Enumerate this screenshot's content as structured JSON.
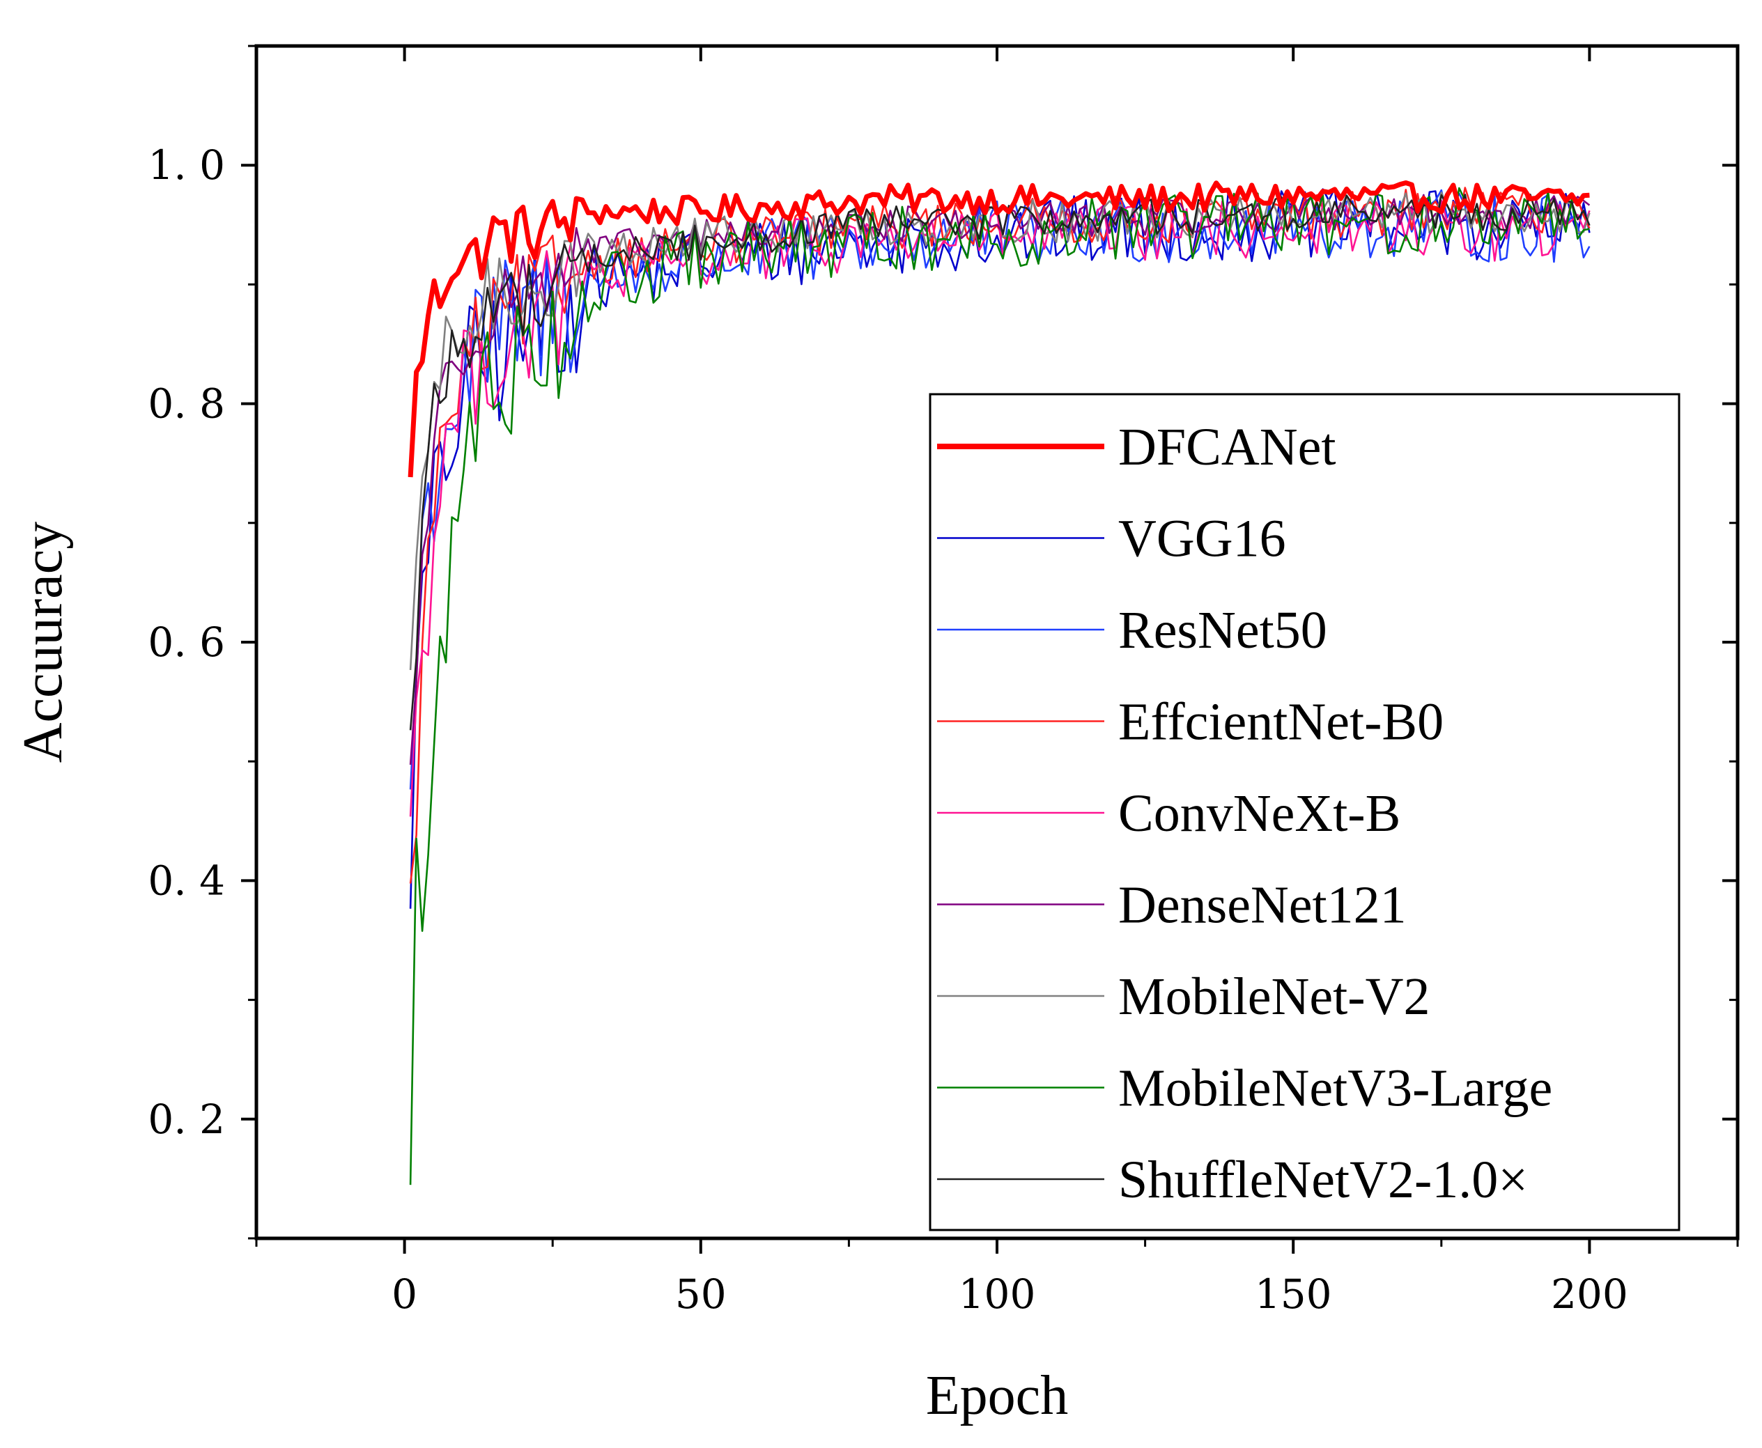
{
  "chart_data": {
    "type": "line",
    "title": "",
    "xlabel": "Epoch",
    "ylabel": "Accuuracy",
    "xlim": [
      -25,
      225
    ],
    "ylim": [
      0.1,
      1.1
    ],
    "xticks": [
      0,
      50,
      100,
      150,
      200
    ],
    "xtick_labels": [
      "0",
      "50",
      "100",
      "150",
      "200"
    ],
    "yticks": [
      0.2,
      0.4,
      0.6,
      0.8,
      1.0
    ],
    "ytick_labels": [
      "0. 2",
      "0. 4",
      "0. 6",
      "0. 8",
      "1. 0"
    ],
    "grid": false,
    "legend_position": "bottom-right",
    "series": [
      {
        "name": "DFCANet",
        "color": "#ff0000",
        "bold": true,
        "anchors": [
          [
            1,
            0.735
          ],
          [
            2,
            0.85
          ],
          [
            3,
            0.83
          ],
          [
            4,
            0.89
          ],
          [
            6,
            0.9
          ],
          [
            8,
            0.93
          ],
          [
            12,
            0.93
          ],
          [
            15,
            0.95
          ],
          [
            20,
            0.95
          ],
          [
            30,
            0.965
          ],
          [
            50,
            0.965
          ],
          [
            80,
            0.975
          ],
          [
            120,
            0.975
          ],
          [
            150,
            0.978
          ],
          [
            200,
            0.975
          ]
        ],
        "noise": 0.012
      },
      {
        "name": "VGG16",
        "color": "#0000cc",
        "anchors": [
          [
            1,
            0.45
          ],
          [
            3,
            0.65
          ],
          [
            5,
            0.72
          ],
          [
            8,
            0.8
          ],
          [
            12,
            0.85
          ],
          [
            20,
            0.88
          ],
          [
            30,
            0.91
          ],
          [
            50,
            0.93
          ],
          [
            80,
            0.945
          ],
          [
            120,
            0.955
          ],
          [
            160,
            0.96
          ],
          [
            200,
            0.955
          ]
        ],
        "noise": 0.03
      },
      {
        "name": "ResNet50",
        "color": "#1f3fff",
        "anchors": [
          [
            1,
            0.5
          ],
          [
            3,
            0.7
          ],
          [
            5,
            0.76
          ],
          [
            8,
            0.82
          ],
          [
            12,
            0.86
          ],
          [
            20,
            0.89
          ],
          [
            30,
            0.91
          ],
          [
            50,
            0.93
          ],
          [
            80,
            0.945
          ],
          [
            120,
            0.955
          ],
          [
            160,
            0.96
          ],
          [
            200,
            0.955
          ]
        ],
        "noise": 0.03
      },
      {
        "name": "EffcientNet-B0",
        "color": "#ff2020",
        "anchors": [
          [
            1,
            0.38
          ],
          [
            3,
            0.6
          ],
          [
            5,
            0.74
          ],
          [
            8,
            0.81
          ],
          [
            12,
            0.86
          ],
          [
            20,
            0.9
          ],
          [
            30,
            0.925
          ],
          [
            50,
            0.94
          ],
          [
            80,
            0.955
          ],
          [
            120,
            0.96
          ],
          [
            160,
            0.965
          ],
          [
            200,
            0.97
          ]
        ],
        "noise": 0.02
      },
      {
        "name": "ConvNeXt-B",
        "color": "#ff1493",
        "anchors": [
          [
            1,
            0.5
          ],
          [
            3,
            0.6
          ],
          [
            5,
            0.72
          ],
          [
            8,
            0.8
          ],
          [
            12,
            0.85
          ],
          [
            20,
            0.88
          ],
          [
            30,
            0.91
          ],
          [
            50,
            0.93
          ],
          [
            80,
            0.945
          ],
          [
            120,
            0.95
          ],
          [
            160,
            0.955
          ],
          [
            200,
            0.95
          ]
        ],
        "noise": 0.025
      },
      {
        "name": "DenseNet121",
        "color": "#800080",
        "anchors": [
          [
            1,
            0.5
          ],
          [
            3,
            0.68
          ],
          [
            5,
            0.78
          ],
          [
            8,
            0.84
          ],
          [
            12,
            0.88
          ],
          [
            20,
            0.91
          ],
          [
            30,
            0.93
          ],
          [
            50,
            0.945
          ],
          [
            80,
            0.955
          ],
          [
            120,
            0.96
          ],
          [
            160,
            0.965
          ],
          [
            200,
            0.965
          ]
        ],
        "noise": 0.015
      },
      {
        "name": "MobileNet-V2",
        "color": "#808080",
        "anchors": [
          [
            1,
            0.55
          ],
          [
            3,
            0.75
          ],
          [
            5,
            0.82
          ],
          [
            8,
            0.86
          ],
          [
            12,
            0.89
          ],
          [
            20,
            0.91
          ],
          [
            30,
            0.93
          ],
          [
            50,
            0.945
          ],
          [
            80,
            0.955
          ],
          [
            120,
            0.96
          ],
          [
            160,
            0.965
          ],
          [
            200,
            0.965
          ]
        ],
        "noise": 0.018
      },
      {
        "name": "MobileNetV3-Large",
        "color": "#008000",
        "anchors": [
          [
            1,
            0.18
          ],
          [
            2,
            0.45
          ],
          [
            3,
            0.38
          ],
          [
            5,
            0.5
          ],
          [
            7,
            0.65
          ],
          [
            10,
            0.78
          ],
          [
            15,
            0.84
          ],
          [
            20,
            0.86
          ],
          [
            30,
            0.9
          ],
          [
            50,
            0.93
          ],
          [
            80,
            0.945
          ],
          [
            120,
            0.955
          ],
          [
            160,
            0.96
          ],
          [
            200,
            0.965
          ]
        ],
        "noise": 0.028
      },
      {
        "name": "ShuffleNetV2-1.0×",
        "color": "#202020",
        "anchors": [
          [
            1,
            0.52
          ],
          [
            3,
            0.72
          ],
          [
            5,
            0.8
          ],
          [
            8,
            0.85
          ],
          [
            12,
            0.88
          ],
          [
            20,
            0.9
          ],
          [
            30,
            0.925
          ],
          [
            50,
            0.94
          ],
          [
            80,
            0.955
          ],
          [
            120,
            0.96
          ],
          [
            160,
            0.965
          ],
          [
            200,
            0.965
          ]
        ],
        "noise": 0.015
      }
    ]
  }
}
